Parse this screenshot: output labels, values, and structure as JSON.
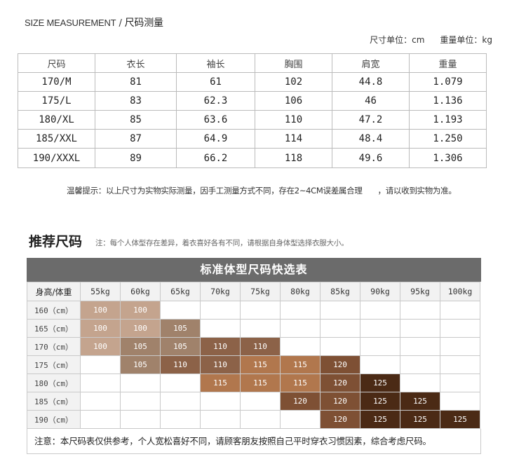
{
  "header": {
    "title_en": "SIZE MEASUREMENT",
    "separator": "/",
    "title_cn": "尺码测量",
    "size_unit": "尺寸单位：cm",
    "weight_unit": "重量单位：kg"
  },
  "size_table": {
    "headers": [
      "尺码",
      "衣长",
      "袖长",
      "胸围",
      "肩宽",
      "重量"
    ],
    "rows": [
      [
        "170/M",
        "81",
        "61",
        "102",
        "44.8",
        "1.079"
      ],
      [
        "175/L",
        "83",
        "62.3",
        "106",
        "46",
        "1.136"
      ],
      [
        "180/XL",
        "85",
        "63.6",
        "110",
        "47.2",
        "1.193"
      ],
      [
        "185/XXL",
        "87",
        "64.9",
        "114",
        "48.4",
        "1.250"
      ],
      [
        "190/XXXL",
        "89",
        "66.2",
        "118",
        "49.6",
        "1.306"
      ]
    ]
  },
  "tip": {
    "part1": "温馨提示：以上尺寸为实物实际测量，因手工测量方式不同，存在2~4CM误差属合理",
    "part2": "，请以收到实物为准。"
  },
  "recommend": {
    "title": "推荐尺码",
    "note": "注：每个人体型存在差异，着衣喜好各有不同，请根据自身体型选择衣服大小。",
    "banner": "标准体型尺码快选表",
    "corner": "身高/体重",
    "weights": [
      "55kg",
      "60kg",
      "65kg",
      "70kg",
      "75kg",
      "80kg",
      "85kg",
      "90kg",
      "95kg",
      "100kg"
    ],
    "heights": [
      "160（cm）",
      "165（cm）",
      "170（cm）",
      "175（cm）",
      "180（cm）",
      "185（cm）",
      "190（cm）"
    ],
    "cells": [
      [
        "100",
        "100",
        "",
        "",
        "",
        "",
        "",
        "",
        "",
        ""
      ],
      [
        "100",
        "100",
        "105",
        "",
        "",
        "",
        "",
        "",
        "",
        ""
      ],
      [
        "100",
        "105",
        "105",
        "110",
        "110",
        "",
        "",
        "",
        "",
        ""
      ],
      [
        "",
        "105",
        "110",
        "110",
        "115",
        "115",
        "120",
        "",
        "",
        ""
      ],
      [
        "",
        "",
        "",
        "115",
        "115",
        "115",
        "120",
        "125",
        "",
        ""
      ],
      [
        "",
        "",
        "",
        "",
        "",
        "120",
        "120",
        "125",
        "125",
        ""
      ],
      [
        "",
        "",
        "",
        "",
        "",
        "",
        "120",
        "125",
        "125",
        "125"
      ]
    ],
    "colors": {
      "100": "#c4a48e",
      "105": "#a0826b",
      "110": "#8c6248",
      "115": "#b1774d",
      "120": "#7e5034",
      "125": "#4b2a15"
    },
    "footnote": "注意：本尺码表仅供参考，个人宽松喜好不同，请顾客朋友按照自己平时穿衣习惯因素，综合考虑尺码。"
  }
}
